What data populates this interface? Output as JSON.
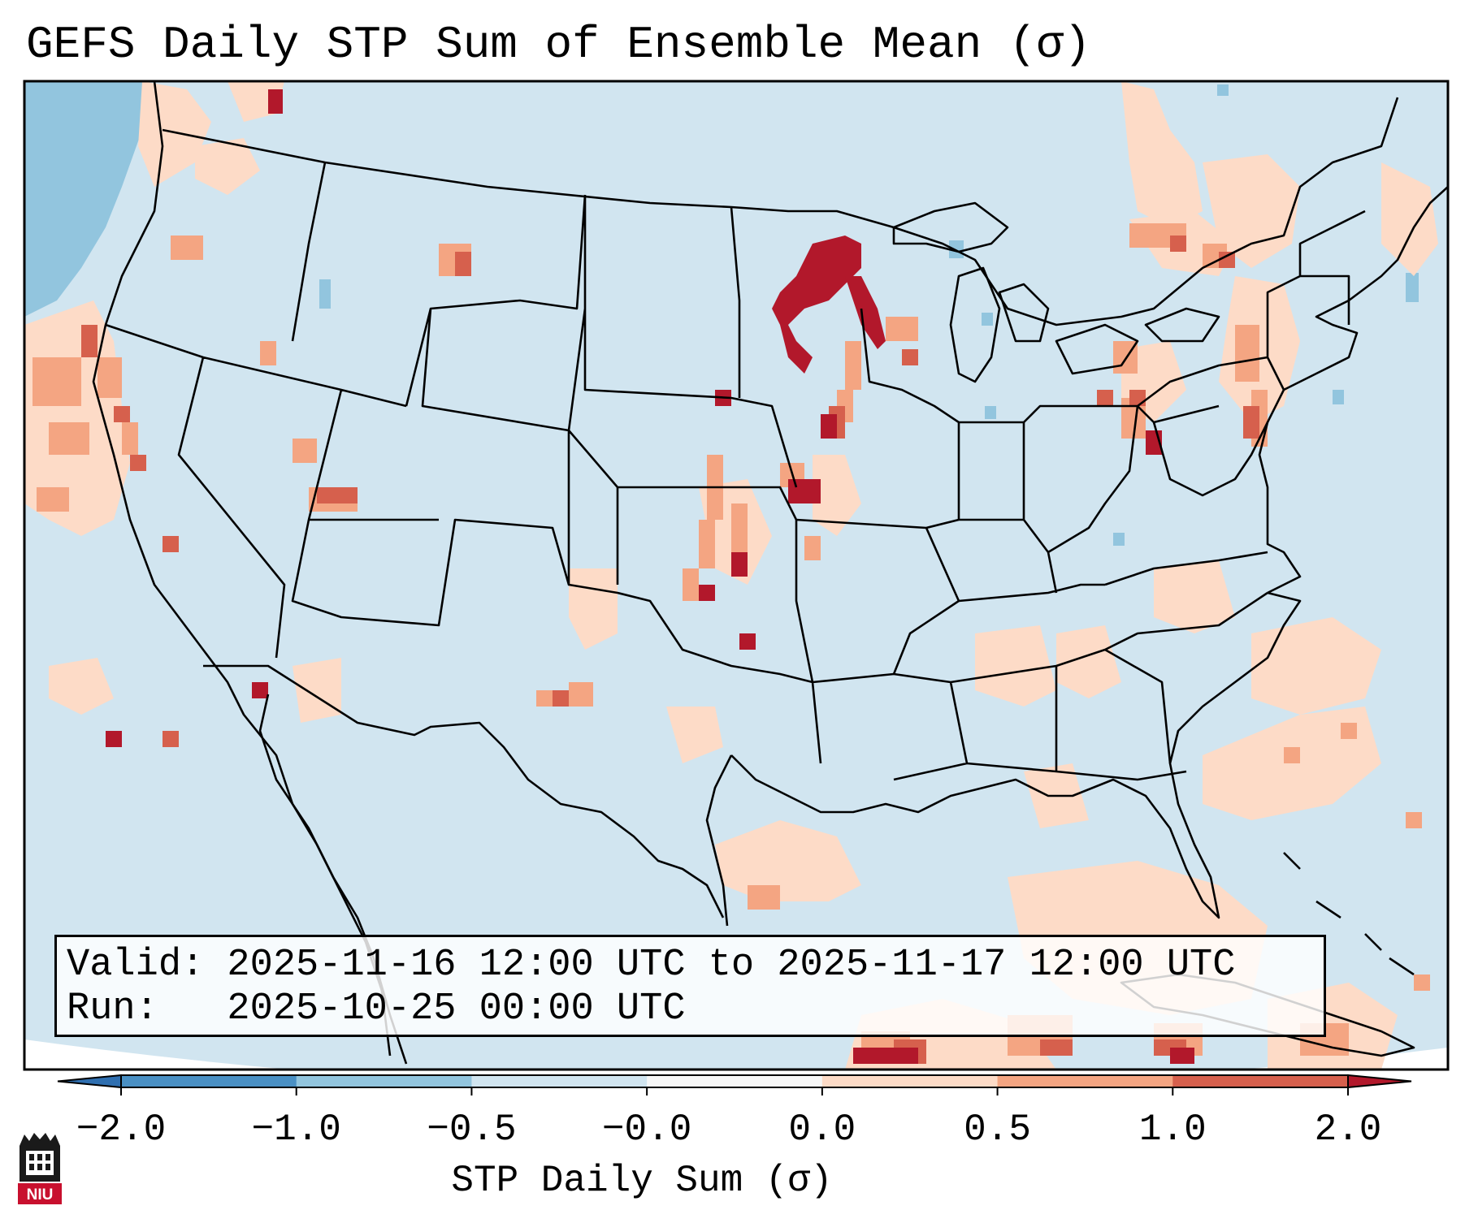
{
  "title": "GEFS Daily STP Sum of Ensemble Mean (σ)",
  "info": {
    "valid_line": "Valid: 2025-11-16 12:00 UTC to 2025-11-17 12:00 UTC",
    "run_line": "Run:   2025-10-25 00:00 UTC"
  },
  "colorbar": {
    "label": "STP Daily Sum (σ)",
    "ticks": [
      "−2.0",
      "−1.0",
      "−0.5",
      "−0.0",
      "0.0",
      "0.5",
      "1.0",
      "2.0"
    ],
    "bins": [
      {
        "from": "-inf",
        "to": -2.0,
        "color": "#2f6fb0"
      },
      {
        "from": -2.0,
        "to": -1.0,
        "color": "#4a90c4"
      },
      {
        "from": -1.0,
        "to": -0.5,
        "color": "#92c5de"
      },
      {
        "from": -0.5,
        "to": 0.0,
        "color": "#d1e5f0"
      },
      {
        "from": 0.0,
        "to": 0.0,
        "color": "#f7f7f7"
      },
      {
        "from": 0.0,
        "to": 0.5,
        "color": "#fddbc7"
      },
      {
        "from": 0.5,
        "to": 1.0,
        "color": "#f4a582"
      },
      {
        "from": 1.0,
        "to": 2.0,
        "color": "#d6604d"
      },
      {
        "from": 2.0,
        "to": "inf",
        "color": "#b2182b"
      }
    ]
  },
  "map": {
    "ocean_color": "#d1e5f0",
    "features": [
      "US states",
      "Canada",
      "Mexico",
      "Great Lakes",
      "Cuba",
      "Bahamas"
    ]
  },
  "logo": {
    "text": "NIU",
    "color": "#c8102e"
  }
}
